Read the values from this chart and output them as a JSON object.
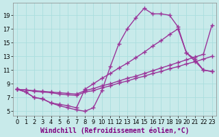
{
  "background_color": "#c8eaea",
  "grid_color": "#aadddd",
  "line_color": "#993399",
  "marker": "+",
  "marker_size": 4,
  "line_width": 1.0,
  "xlabel": "Windchill (Refroidissement éolien,°C)",
  "xlabel_fontsize": 7,
  "ylabel_ticks": [
    5,
    7,
    9,
    11,
    13,
    15,
    17,
    19
  ],
  "xlim": [
    -0.5,
    23.5
  ],
  "ylim": [
    4.3,
    20.8
  ],
  "tick_fontsize": 6,
  "series1_x": [
    0,
    1,
    2,
    3,
    4,
    5,
    6,
    7,
    8,
    9,
    10,
    11,
    12,
    13,
    14,
    15,
    16,
    17,
    18,
    19,
    20,
    21,
    22,
    23
  ],
  "series1_y": [
    8.2,
    7.8,
    7.0,
    6.8,
    6.2,
    5.8,
    5.5,
    5.2,
    5.0,
    5.5,
    8.0,
    11.5,
    14.8,
    17.0,
    18.6,
    20.0,
    19.2,
    19.2,
    19.0,
    17.3,
    13.5,
    12.6,
    11.0,
    10.8
  ],
  "series2_x": [
    0,
    1,
    2,
    3,
    4,
    5,
    6,
    7,
    8,
    9,
    10,
    11,
    12,
    13,
    14,
    15,
    16,
    17,
    18,
    19,
    20,
    21,
    22,
    23
  ],
  "series2_y": [
    8.2,
    7.8,
    7.0,
    6.8,
    6.2,
    6.0,
    5.8,
    5.5,
    8.2,
    9.0,
    9.8,
    10.5,
    11.3,
    12.0,
    12.8,
    13.6,
    14.5,
    15.3,
    16.2,
    17.0,
    13.5,
    12.3,
    11.0,
    10.8
  ],
  "series3_x": [
    0,
    1,
    2,
    3,
    4,
    5,
    6,
    7,
    8,
    9,
    10,
    11,
    12,
    13,
    14,
    15,
    16,
    17,
    18,
    19,
    20,
    21,
    22,
    23
  ],
  "series3_y": [
    8.2,
    8.1,
    8.0,
    7.9,
    7.8,
    7.7,
    7.6,
    7.5,
    8.0,
    8.3,
    8.7,
    9.0,
    9.4,
    9.8,
    10.1,
    10.5,
    10.9,
    11.3,
    11.7,
    12.1,
    12.5,
    12.9,
    13.3,
    17.5
  ],
  "series4_x": [
    0,
    1,
    2,
    3,
    4,
    5,
    6,
    7,
    8,
    9,
    10,
    11,
    12,
    13,
    14,
    15,
    16,
    17,
    18,
    19,
    20,
    21,
    22,
    23
  ],
  "series4_y": [
    8.2,
    8.1,
    7.9,
    7.8,
    7.7,
    7.5,
    7.4,
    7.3,
    7.8,
    8.0,
    8.4,
    8.7,
    9.1,
    9.4,
    9.8,
    10.1,
    10.5,
    10.8,
    11.2,
    11.5,
    11.9,
    12.2,
    12.6,
    13.0
  ]
}
